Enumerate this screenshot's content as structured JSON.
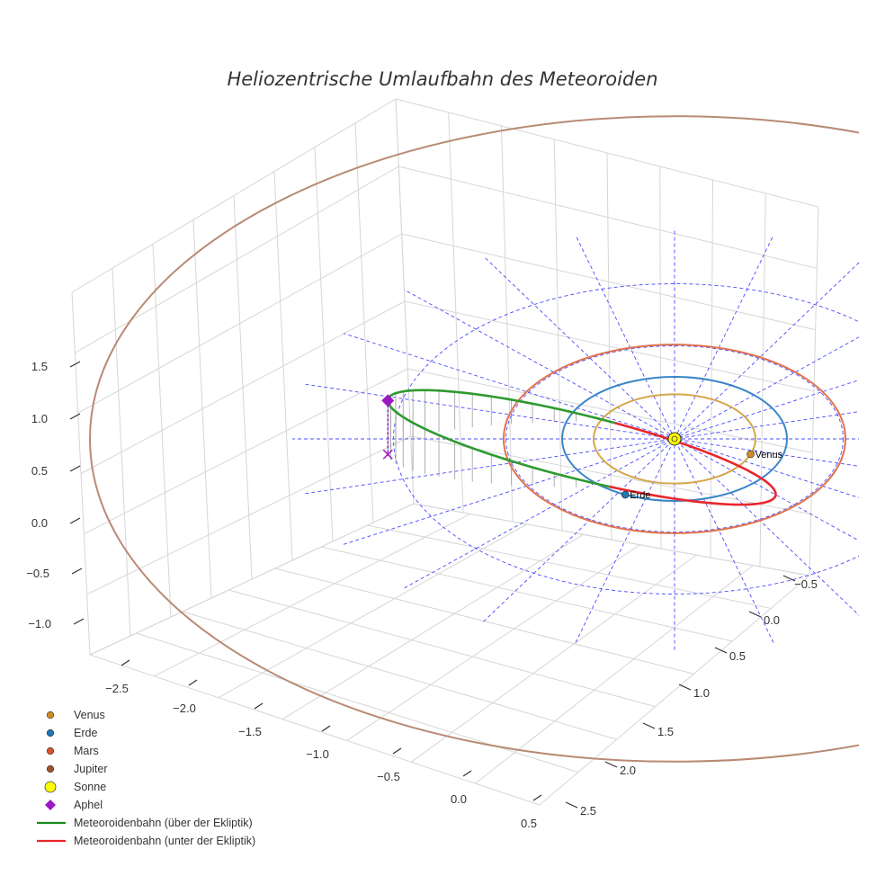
{
  "chart_data": {
    "type": "line",
    "projection": "3d",
    "title": "Heliozentrische Umlaufbahn des Meteoroiden",
    "axes": {
      "x_ticks": [
        "−2.5",
        "−2.0",
        "−1.5",
        "−1.0",
        "−0.5",
        "0.0",
        "0.5"
      ],
      "y_ticks": [
        "−0.5",
        "0.0",
        "0.5",
        "1.0",
        "1.5",
        "2.0",
        "2.5"
      ],
      "z_ticks": [
        "−1.0",
        "−0.5",
        "0.0",
        "0.5",
        "1.0",
        "1.5"
      ],
      "x_range": [
        -2.7,
        0.6
      ],
      "y_range": [
        -0.7,
        2.6
      ],
      "z_range": [
        -1.2,
        1.8
      ]
    },
    "orbit_radii_au": {
      "venus": 0.72,
      "erde": 1.0,
      "mars": 1.52,
      "jupiter": 5.2
    },
    "ecliptic_reference_rings_au": [
      1.5,
      2.5
    ],
    "ecliptic_reference_spokes": 12,
    "meteoroid_orbit": {
      "perihelion_au": 0.9,
      "aphelion_au": 2.55,
      "max_height_au": 1.05,
      "above": "green",
      "below": "red"
    },
    "planet_markers": [
      {
        "name": "Venus",
        "label": "Venus",
        "angle_deg": 200
      },
      {
        "name": "Erde",
        "label": "Erde",
        "angle_deg": 296
      }
    ],
    "colors": {
      "venus": "#d18b22",
      "erde": "#1f78b4",
      "mars": "#d9532a",
      "jupiter": "#a0522d",
      "venus_orbit": "#d4a64a",
      "erde_orbit": "#3a86c8",
      "mars_orbit": "#e0734f",
      "jupiter_orbit": "#b98a74",
      "sonne": "#ffff00",
      "aphel": "#9b19c2",
      "above": "#2e9a2e",
      "below": "#e8262c"
    },
    "legend": [
      {
        "label": "Venus",
        "marker": "dot",
        "color": "#d18b22"
      },
      {
        "label": "Erde",
        "marker": "dot",
        "color": "#1f78b4"
      },
      {
        "label": "Mars",
        "marker": "dot",
        "color": "#d9532a"
      },
      {
        "label": "Jupiter",
        "marker": "dot",
        "color": "#a0522d"
      },
      {
        "label": "Sonne",
        "marker": "bigdot",
        "color": "#ffff00"
      },
      {
        "label": "Aphel",
        "marker": "diamond",
        "color": "#9b19c2"
      },
      {
        "label": "Meteoroidenbahn (über der Ekliptik)",
        "marker": "line",
        "color": "#1a8a1a"
      },
      {
        "label": "Meteoroidenbahn (unter der Ekliptik)",
        "marker": "line",
        "color": "#e8262c"
      }
    ]
  }
}
